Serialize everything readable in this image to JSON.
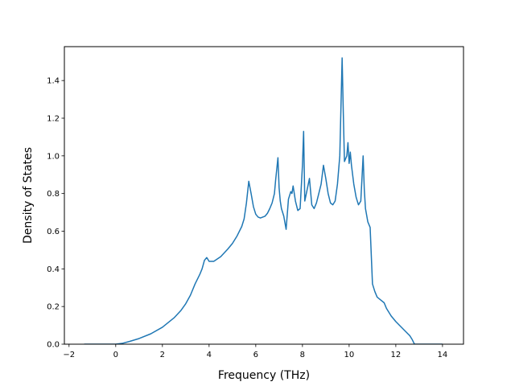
{
  "chart_data": {
    "type": "line",
    "title": "",
    "xlabel": "Frequency (THz)",
    "ylabel": "Density of States",
    "xlim": [
      -2.2,
      14.9
    ],
    "ylim": [
      0.0,
      1.58
    ],
    "xticks": [
      -2,
      0,
      2,
      4,
      6,
      8,
      10,
      12,
      14
    ],
    "xtick_labels": [
      "−2",
      "0",
      "2",
      "4",
      "6",
      "8",
      "10",
      "12",
      "14"
    ],
    "yticks": [
      0.0,
      0.2,
      0.4,
      0.6,
      0.8,
      1.0,
      1.2,
      1.4
    ],
    "ytick_labels": [
      "0.0",
      "0.2",
      "0.4",
      "0.6",
      "0.8",
      "1.0",
      "1.2",
      "1.4"
    ],
    "grid": false,
    "legend": "none",
    "series": [
      {
        "color": "#1f77b4",
        "x": [
          -1.35,
          -1.0,
          -0.5,
          0.0,
          0.3,
          0.6,
          1.0,
          1.5,
          2.0,
          2.5,
          2.8,
          3.0,
          3.2,
          3.4,
          3.6,
          3.7,
          3.8,
          3.9,
          4.0,
          4.2,
          4.5,
          4.8,
          5.0,
          5.2,
          5.4,
          5.5,
          5.6,
          5.7,
          5.8,
          5.9,
          6.0,
          6.1,
          6.2,
          6.4,
          6.5,
          6.6,
          6.7,
          6.8,
          6.85,
          6.9,
          6.95,
          7.0,
          7.05,
          7.1,
          7.2,
          7.3,
          7.4,
          7.5,
          7.55,
          7.6,
          7.65,
          7.7,
          7.8,
          7.9,
          8.0,
          8.05,
          8.1,
          8.2,
          8.3,
          8.4,
          8.5,
          8.6,
          8.7,
          8.8,
          8.9,
          9.0,
          9.1,
          9.2,
          9.3,
          9.4,
          9.5,
          9.6,
          9.7,
          9.75,
          9.8,
          9.9,
          9.95,
          10.0,
          10.05,
          10.1,
          10.2,
          10.3,
          10.4,
          10.5,
          10.6,
          10.65,
          10.7,
          10.8,
          10.9,
          11.0,
          11.1,
          11.2,
          11.3,
          11.5,
          11.6,
          11.8,
          12.0,
          12.2,
          12.4,
          12.6,
          12.7,
          12.8,
          12.9,
          13.2,
          13.6,
          14.0
        ],
        "y": [
          0.0,
          0.0,
          0.0,
          0.0,
          0.005,
          0.015,
          0.03,
          0.055,
          0.09,
          0.14,
          0.18,
          0.215,
          0.26,
          0.32,
          0.37,
          0.4,
          0.445,
          0.46,
          0.44,
          0.44,
          0.465,
          0.505,
          0.535,
          0.575,
          0.625,
          0.665,
          0.75,
          0.865,
          0.8,
          0.73,
          0.69,
          0.675,
          0.67,
          0.68,
          0.695,
          0.72,
          0.75,
          0.8,
          0.87,
          0.93,
          0.99,
          0.83,
          0.76,
          0.72,
          0.68,
          0.61,
          0.77,
          0.81,
          0.8,
          0.84,
          0.8,
          0.76,
          0.71,
          0.72,
          0.95,
          1.13,
          0.76,
          0.82,
          0.88,
          0.74,
          0.72,
          0.75,
          0.8,
          0.85,
          0.95,
          0.88,
          0.8,
          0.75,
          0.74,
          0.76,
          0.85,
          1.0,
          1.52,
          1.23,
          0.97,
          1.0,
          1.07,
          0.96,
          1.02,
          0.95,
          0.85,
          0.78,
          0.74,
          0.76,
          1.0,
          0.82,
          0.72,
          0.65,
          0.62,
          0.32,
          0.28,
          0.25,
          0.24,
          0.22,
          0.19,
          0.15,
          0.12,
          0.095,
          0.07,
          0.045,
          0.025,
          0.0,
          0.0,
          0.0,
          0.0,
          0.0
        ]
      }
    ]
  }
}
